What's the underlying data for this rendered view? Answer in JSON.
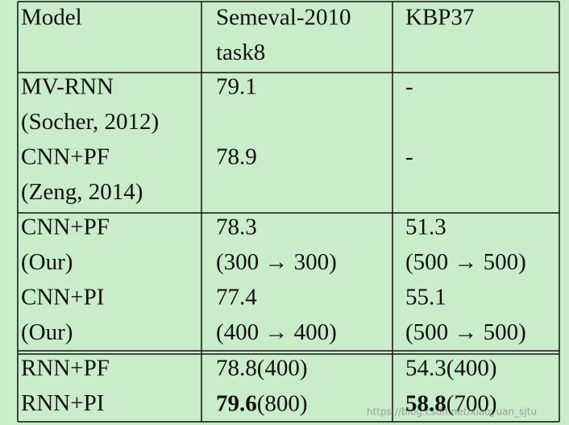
{
  "table": {
    "header": [
      [
        "Model"
      ],
      [
        "Semeval-2010",
        "task8"
      ],
      [
        "KBP37"
      ]
    ],
    "groups": [
      [
        [
          [
            "MV-RNN",
            "(Socher, 2012)"
          ],
          [
            "79.1"
          ],
          [
            "-"
          ]
        ],
        [
          [
            "CNN+PF",
            "(Zeng, 2014)"
          ],
          [
            "78.9"
          ],
          [
            "-"
          ]
        ]
      ],
      [
        [
          [
            "CNN+PF",
            "(Our)"
          ],
          [
            "78.3",
            "(300 → 300)"
          ],
          [
            "51.3",
            "(500 → 500)"
          ]
        ],
        [
          [
            "CNN+PI",
            "(Our)"
          ],
          [
            "77.4",
            "(400 → 400)"
          ],
          [
            "55.1",
            "(500 → 500)"
          ]
        ]
      ],
      [
        [
          [
            "RNN+PF"
          ],
          [
            "78.8(400)"
          ],
          [
            "54.3(400)"
          ]
        ],
        [
          [
            "RNN+PI"
          ],
          [
            [
              {
                "text": "79.6",
                "bold": true
              },
              {
                "text": "(800)",
                "bold": false
              }
            ]
          ],
          [
            [
              {
                "text": "58.8",
                "bold": true
              },
              {
                "text": "(700)",
                "bold": false
              }
            ]
          ]
        ]
      ]
    ]
  },
  "watermark": "https://blog.csdn.net/xiaoyuan_sjtu"
}
